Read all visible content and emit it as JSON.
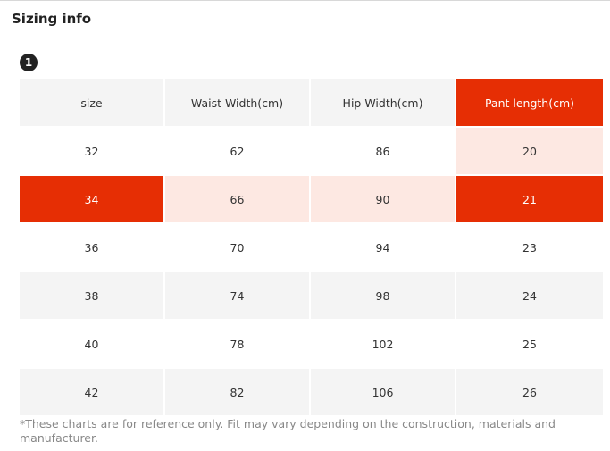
{
  "title": "Sizing info",
  "badge": "1",
  "table": {
    "headers": [
      "size",
      "Waist Width(cm)",
      "Hip Width(cm)",
      "Pant length(cm)"
    ],
    "rows": [
      [
        "32",
        "62",
        "86",
        "20"
      ],
      [
        "34",
        "66",
        "90",
        "21"
      ],
      [
        "36",
        "70",
        "94",
        "23"
      ],
      [
        "38",
        "74",
        "98",
        "24"
      ],
      [
        "40",
        "78",
        "102",
        "25"
      ],
      [
        "42",
        "82",
        "106",
        "26"
      ]
    ]
  },
  "footnote": "*These charts are for reference only. Fit may vary depending on the construction, materials and manufacturer.",
  "colors": {
    "highlight": "#e62e04",
    "highlight_soft": "#fde8e2",
    "row_gray": "#f4f4f4"
  }
}
